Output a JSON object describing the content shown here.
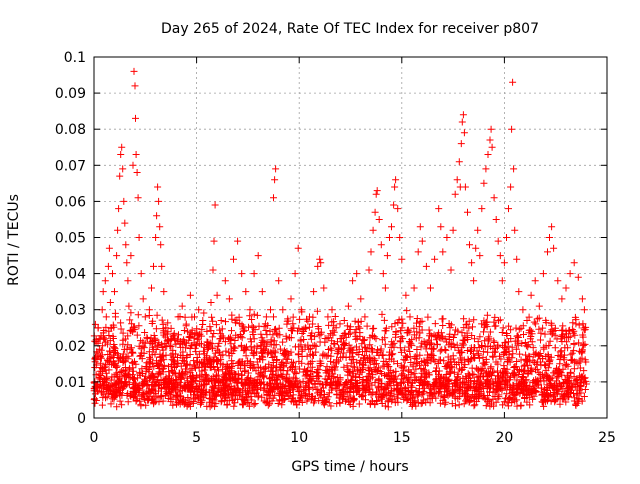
{
  "chart_data": {
    "type": "scatter",
    "title": "Day 265 of 2024, Rate Of TEC Index for receiver p807",
    "xlabel": "GPS time / hours",
    "ylabel": "ROTI / TECUs",
    "xlim": [
      0,
      25
    ],
    "ylim": [
      0,
      0.1
    ],
    "x_ticks": [
      0,
      5,
      10,
      15,
      20,
      25
    ],
    "x_tick_labels": [
      "0",
      "5",
      "10",
      "15",
      "20",
      "25"
    ],
    "y_ticks": [
      0,
      0.01,
      0.02,
      0.03,
      0.04,
      0.05,
      0.06,
      0.07,
      0.08,
      0.09,
      0.1
    ],
    "y_tick_labels": [
      "0",
      "0.01",
      "0.02",
      "0.03",
      "0.04",
      "0.05",
      "0.06",
      "0.07",
      "0.08",
      "0.09",
      "0.1"
    ],
    "grid": true,
    "marker": "plus",
    "marker_color": "#ff0000",
    "series": [
      {
        "points": [
          [
            0.1,
            0.012
          ],
          [
            0.15,
            0.018
          ],
          [
            0.2,
            0.025
          ],
          [
            0.25,
            0.022
          ],
          [
            0.3,
            0.017
          ],
          [
            0.4,
            0.03
          ],
          [
            0.45,
            0.035
          ],
          [
            0.5,
            0.014
          ],
          [
            0.55,
            0.038
          ],
          [
            0.6,
            0.028
          ],
          [
            0.7,
            0.042
          ],
          [
            0.75,
            0.047
          ],
          [
            0.8,
            0.032
          ],
          [
            0.85,
            0.025
          ],
          [
            0.9,
            0.04
          ],
          [
            1.0,
            0.035
          ],
          [
            1.05,
            0.028
          ],
          [
            1.1,
            0.045
          ],
          [
            1.15,
            0.052
          ],
          [
            1.2,
            0.058
          ],
          [
            1.25,
            0.067
          ],
          [
            1.3,
            0.073
          ],
          [
            1.35,
            0.075
          ],
          [
            1.4,
            0.069
          ],
          [
            1.45,
            0.06
          ],
          [
            1.5,
            0.054
          ],
          [
            1.55,
            0.048
          ],
          [
            1.6,
            0.043
          ],
          [
            1.65,
            0.038
          ],
          [
            1.7,
            0.031
          ],
          [
            1.8,
            0.045
          ],
          [
            1.9,
            0.07
          ],
          [
            1.95,
            0.096
          ],
          [
            2.0,
            0.092
          ],
          [
            2.02,
            0.083
          ],
          [
            2.05,
            0.073
          ],
          [
            2.1,
            0.068
          ],
          [
            2.15,
            0.061
          ],
          [
            2.2,
            0.05
          ],
          [
            2.3,
            0.04
          ],
          [
            2.4,
            0.033
          ],
          [
            2.5,
            0.028
          ],
          [
            2.6,
            0.022
          ],
          [
            2.7,
            0.03
          ],
          [
            2.8,
            0.036
          ],
          [
            2.9,
            0.042
          ],
          [
            3.0,
            0.05
          ],
          [
            3.05,
            0.056
          ],
          [
            3.1,
            0.064
          ],
          [
            3.15,
            0.06
          ],
          [
            3.2,
            0.053
          ],
          [
            3.25,
            0.048
          ],
          [
            3.3,
            0.042
          ],
          [
            3.4,
            0.035
          ],
          [
            3.5,
            0.025
          ],
          [
            3.7,
            0.02
          ],
          [
            3.9,
            0.023
          ],
          [
            4.1,
            0.028
          ],
          [
            4.3,
            0.031
          ],
          [
            4.5,
            0.026
          ],
          [
            4.7,
            0.034
          ],
          [
            4.9,
            0.028
          ],
          [
            5.1,
            0.03
          ],
          [
            5.3,
            0.027
          ],
          [
            5.5,
            0.024
          ],
          [
            5.7,
            0.032
          ],
          [
            5.8,
            0.041
          ],
          [
            5.85,
            0.049
          ],
          [
            5.9,
            0.059
          ],
          [
            6.0,
            0.034
          ],
          [
            6.2,
            0.027
          ],
          [
            6.4,
            0.038
          ],
          [
            6.6,
            0.033
          ],
          [
            6.8,
            0.044
          ],
          [
            7.0,
            0.049
          ],
          [
            7.2,
            0.04
          ],
          [
            7.4,
            0.035
          ],
          [
            7.6,
            0.03
          ],
          [
            7.8,
            0.04
          ],
          [
            8.0,
            0.045
          ],
          [
            8.2,
            0.035
          ],
          [
            8.4,
            0.028
          ],
          [
            8.6,
            0.03
          ],
          [
            8.75,
            0.061
          ],
          [
            8.8,
            0.066
          ],
          [
            8.85,
            0.069
          ],
          [
            9.0,
            0.038
          ],
          [
            9.2,
            0.03
          ],
          [
            9.4,
            0.026
          ],
          [
            9.6,
            0.033
          ],
          [
            9.8,
            0.04
          ],
          [
            9.95,
            0.047
          ],
          [
            10.1,
            0.03
          ],
          [
            10.3,
            0.025
          ],
          [
            10.5,
            0.028
          ],
          [
            10.7,
            0.035
          ],
          [
            10.9,
            0.042
          ],
          [
            11.0,
            0.044
          ],
          [
            11.05,
            0.043
          ],
          [
            11.2,
            0.036
          ],
          [
            11.4,
            0.028
          ],
          [
            11.6,
            0.03
          ],
          [
            11.8,
            0.025
          ],
          [
            12.0,
            0.022
          ],
          [
            12.2,
            0.027
          ],
          [
            12.4,
            0.031
          ],
          [
            12.6,
            0.038
          ],
          [
            12.8,
            0.04
          ],
          [
            13.0,
            0.033
          ],
          [
            13.2,
            0.028
          ],
          [
            13.4,
            0.041
          ],
          [
            13.5,
            0.046
          ],
          [
            13.6,
            0.052
          ],
          [
            13.7,
            0.057
          ],
          [
            13.75,
            0.062
          ],
          [
            13.8,
            0.063
          ],
          [
            13.9,
            0.055
          ],
          [
            14.0,
            0.048
          ],
          [
            14.1,
            0.04
          ],
          [
            14.2,
            0.036
          ],
          [
            14.3,
            0.045
          ],
          [
            14.4,
            0.05
          ],
          [
            14.5,
            0.053
          ],
          [
            14.6,
            0.059
          ],
          [
            14.65,
            0.064
          ],
          [
            14.7,
            0.066
          ],
          [
            14.8,
            0.058
          ],
          [
            14.9,
            0.05
          ],
          [
            15.0,
            0.044
          ],
          [
            15.2,
            0.034
          ],
          [
            15.4,
            0.028
          ],
          [
            15.6,
            0.036
          ],
          [
            15.8,
            0.046
          ],
          [
            15.9,
            0.053
          ],
          [
            16.0,
            0.049
          ],
          [
            16.2,
            0.042
          ],
          [
            16.4,
            0.036
          ],
          [
            16.6,
            0.044
          ],
          [
            16.8,
            0.058
          ],
          [
            16.9,
            0.053
          ],
          [
            17.0,
            0.046
          ],
          [
            17.2,
            0.05
          ],
          [
            17.4,
            0.041
          ],
          [
            17.5,
            0.052
          ],
          [
            17.6,
            0.062
          ],
          [
            17.7,
            0.066
          ],
          [
            17.8,
            0.071
          ],
          [
            17.85,
            0.064
          ],
          [
            17.9,
            0.076
          ],
          [
            17.95,
            0.082
          ],
          [
            18.0,
            0.084
          ],
          [
            18.05,
            0.079
          ],
          [
            18.1,
            0.064
          ],
          [
            18.2,
            0.057
          ],
          [
            18.3,
            0.048
          ],
          [
            18.4,
            0.043
          ],
          [
            18.5,
            0.038
          ],
          [
            18.6,
            0.047
          ],
          [
            18.7,
            0.052
          ],
          [
            18.8,
            0.045
          ],
          [
            18.9,
            0.058
          ],
          [
            19.0,
            0.065
          ],
          [
            19.1,
            0.069
          ],
          [
            19.2,
            0.073
          ],
          [
            19.3,
            0.077
          ],
          [
            19.35,
            0.08
          ],
          [
            19.4,
            0.075
          ],
          [
            19.5,
            0.061
          ],
          [
            19.6,
            0.055
          ],
          [
            19.7,
            0.049
          ],
          [
            19.8,
            0.045
          ],
          [
            19.9,
            0.038
          ],
          [
            20.0,
            0.043
          ],
          [
            20.1,
            0.05
          ],
          [
            20.2,
            0.058
          ],
          [
            20.3,
            0.064
          ],
          [
            20.35,
            0.08
          ],
          [
            20.4,
            0.093
          ],
          [
            20.45,
            0.069
          ],
          [
            20.5,
            0.052
          ],
          [
            20.6,
            0.044
          ],
          [
            20.7,
            0.035
          ],
          [
            20.9,
            0.03
          ],
          [
            21.1,
            0.027
          ],
          [
            21.3,
            0.034
          ],
          [
            21.5,
            0.038
          ],
          [
            21.7,
            0.031
          ],
          [
            21.9,
            0.04
          ],
          [
            22.1,
            0.046
          ],
          [
            22.2,
            0.05
          ],
          [
            22.3,
            0.053
          ],
          [
            22.4,
            0.047
          ],
          [
            22.6,
            0.038
          ],
          [
            22.8,
            0.033
          ],
          [
            23.0,
            0.036
          ],
          [
            23.2,
            0.04
          ],
          [
            23.4,
            0.043
          ],
          [
            23.6,
            0.039
          ],
          [
            23.8,
            0.033
          ],
          [
            23.9,
            0.03
          ]
        ],
        "baseline_band": {
          "x_from": 0,
          "x_to": 24,
          "y_from": 0.003,
          "y_to": 0.03
        }
      }
    ]
  }
}
